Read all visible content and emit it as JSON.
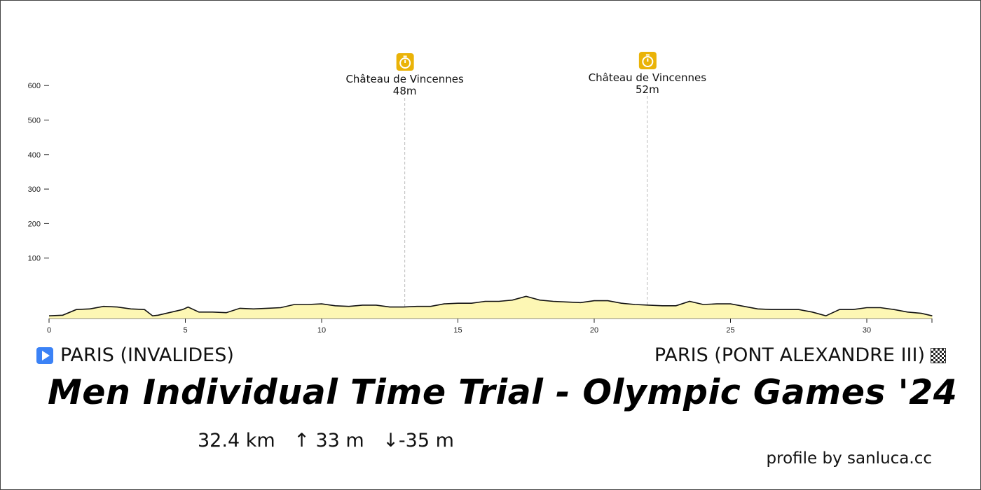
{
  "chart_data": {
    "type": "area",
    "title": "Men Individual Time Trial - Olympic Games '24",
    "xlabel": "",
    "ylabel": "",
    "xlim": [
      0,
      32.4
    ],
    "ylim": [
      0,
      650
    ],
    "x_ticks": [
      0,
      5,
      10,
      15,
      20,
      25,
      30
    ],
    "y_ticks": [
      100,
      200,
      300,
      400,
      500,
      600
    ],
    "fill_color": "#fdf7b4",
    "line_color": "#111111",
    "grid": false,
    "x": [
      0,
      0.5,
      1,
      1.5,
      2,
      2.5,
      3,
      3.5,
      3.8,
      4,
      4.5,
      4.9,
      5.1,
      5.5,
      6,
      6.5,
      7,
      7.5,
      8,
      8.5,
      9,
      9.5,
      10,
      10.5,
      11,
      11.5,
      12,
      12.5,
      13,
      13.5,
      14,
      14.5,
      15,
      15.5,
      16,
      16.5,
      17,
      17.5,
      18,
      18.5,
      19,
      19.5,
      20,
      20.5,
      21,
      21.5,
      22,
      22.5,
      23,
      23.5,
      24,
      24.5,
      25,
      25.5,
      26,
      26.5,
      27,
      27.5,
      28,
      28.5,
      29,
      29.5,
      30,
      30.5,
      31,
      31.5,
      32,
      32.4
    ],
    "y": [
      32,
      33,
      42,
      43,
      47,
      46,
      43,
      42,
      32,
      33,
      38,
      42,
      46,
      38,
      38,
      37,
      44,
      43,
      44,
      45,
      50,
      50,
      51,
      48,
      47,
      49,
      49,
      46,
      46,
      47,
      47,
      51,
      52,
      52,
      55,
      55,
      57,
      63,
      57,
      55,
      54,
      53,
      56,
      56,
      52,
      50,
      49,
      48,
      48,
      55,
      50,
      51,
      51,
      47,
      43,
      42,
      42,
      42,
      38,
      32,
      42,
      42,
      45,
      45,
      42,
      38,
      36,
      32
    ],
    "checkpoints": [
      {
        "km": 13.05,
        "name": "Château de Vincennes",
        "elevation": "48m"
      },
      {
        "km": 21.95,
        "name": "Château de Vincennes",
        "elevation": "52m"
      }
    ]
  },
  "start_label": "PARIS (INVALIDES)",
  "finish_label": "PARIS (PONT ALEXANDRE III)",
  "start_icon": "play-icon",
  "finish_icon": "checkered-flag-icon",
  "checkpoint_icon": "stopwatch-icon",
  "checkpoint_icon_color": "#eab308",
  "stats": {
    "distance": "32.4 km",
    "ascent": "↑ 33 m",
    "descent": "↓-35 m"
  },
  "credit": "profile by sanluca.cc"
}
